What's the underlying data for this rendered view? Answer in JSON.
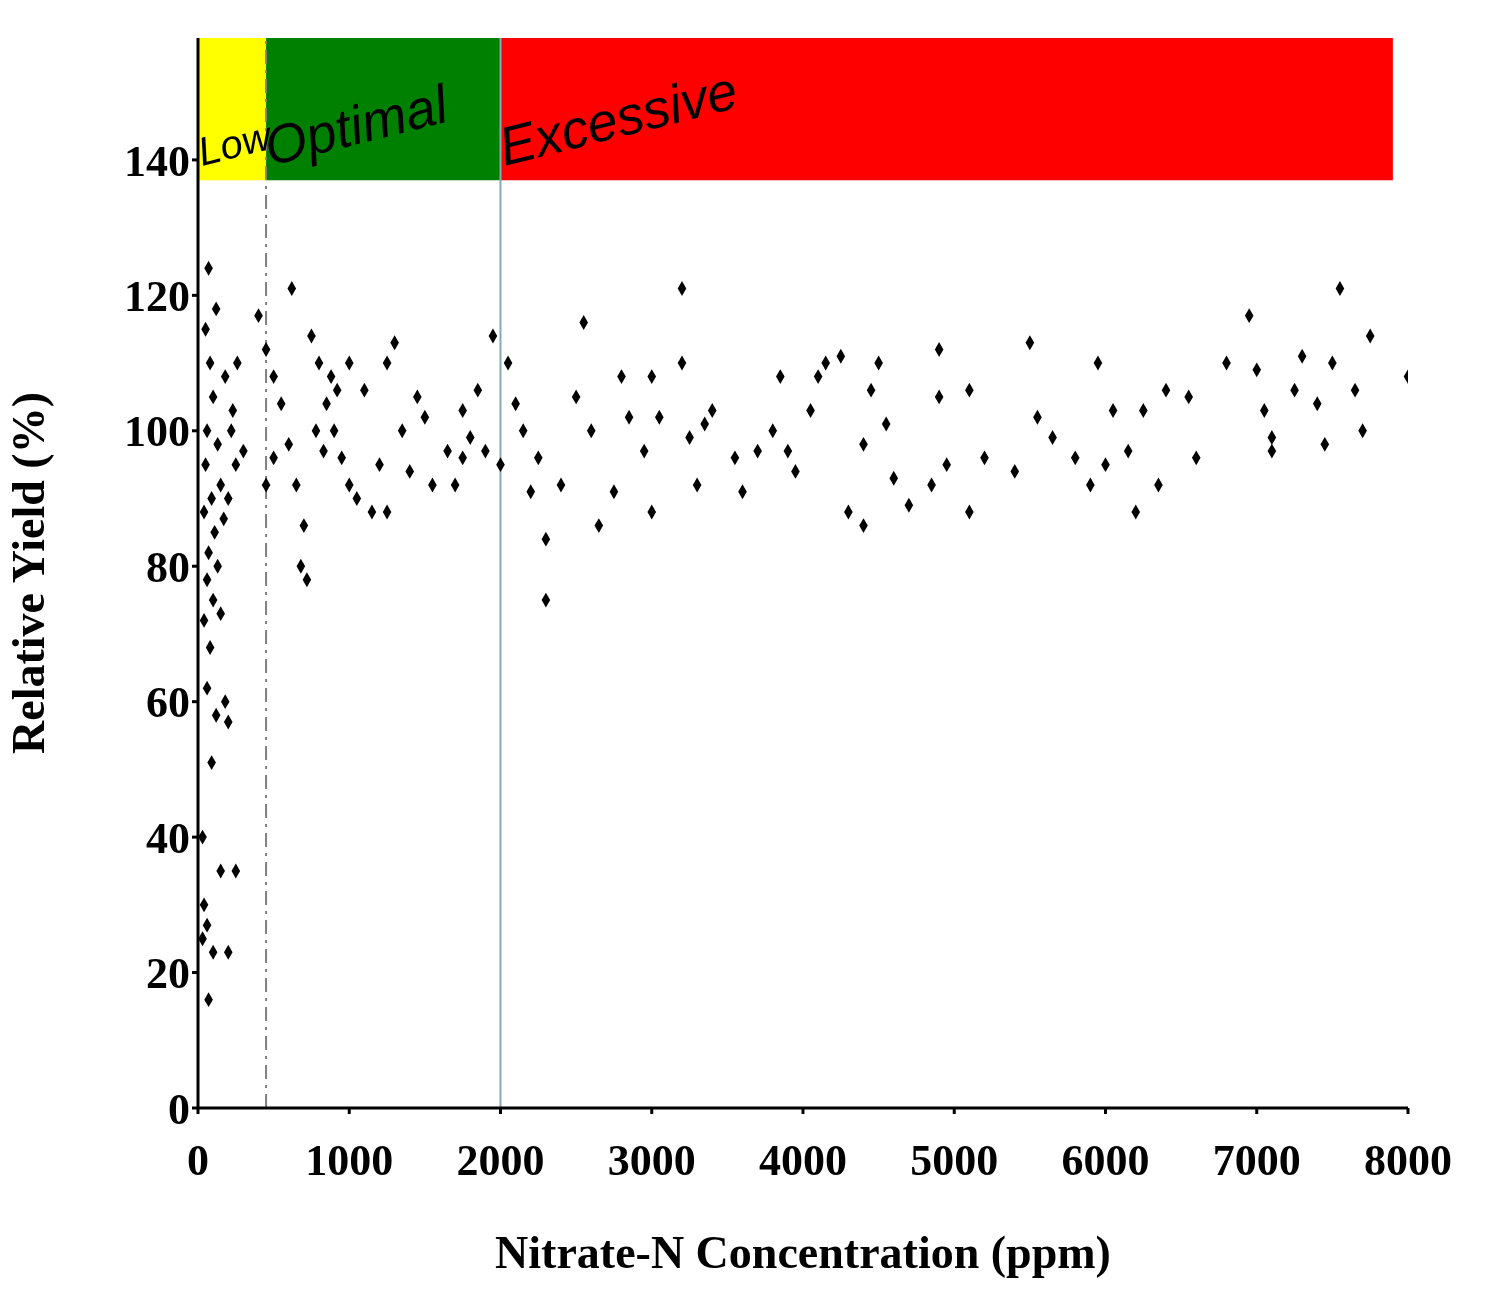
{
  "chart_data": {
    "type": "scatter",
    "xlabel": "Nitrate-N Concentration (ppm)",
    "ylabel": "Relative Yield (%)",
    "xlim": [
      0,
      8000
    ],
    "xticks": [
      0,
      1000,
      2000,
      3000,
      4000,
      5000,
      6000,
      7000,
      8000
    ],
    "ylim": [
      0,
      158
    ],
    "yticks": [
      0,
      20,
      40,
      60,
      80,
      100,
      120,
      140
    ],
    "marker": "diamond",
    "bands": [
      {
        "axis": "x",
        "from": 0,
        "to": 450,
        "label": "Low",
        "color": "#ffff00"
      },
      {
        "axis": "x",
        "from": 450,
        "to": 2000,
        "label": "Optimal",
        "color": "#008000"
      },
      {
        "axis": "x",
        "from": 2000,
        "to": 7900,
        "label": "Excessive",
        "color": "#ff0000"
      }
    ],
    "ref_lines": [
      {
        "axis": "x",
        "value": 450,
        "color": "#808080",
        "line_style": "dashed"
      },
      {
        "axis": "x",
        "value": 2000,
        "color": "#8aa8b8",
        "line_style": "solid"
      }
    ],
    "series": [
      {
        "color": "#000000",
        "x": [
          70,
          50,
          120,
          80,
          100,
          60,
          130,
          50,
          150,
          90,
          40,
          110,
          170,
          70,
          130,
          60,
          100,
          40,
          150,
          80,
          60,
          180,
          120,
          200,
          90,
          30,
          150,
          250,
          40,
          60,
          100,
          200,
          30,
          70,
          180,
          220,
          250,
          200,
          230,
          300,
          260,
          400,
          450,
          500,
          550,
          600,
          650,
          700,
          680,
          720,
          620,
          750,
          800,
          850,
          900,
          950,
          1000,
          780,
          830,
          880,
          920,
          1000,
          1100,
          1150,
          1200,
          1250,
          1300,
          1350,
          1400,
          1450,
          1500,
          1550,
          1650,
          1700,
          1750,
          1800,
          1850,
          1900,
          1950,
          2000,
          1250,
          1050,
          1750,
          450,
          500,
          2050,
          2100,
          2150,
          2200,
          2250,
          2300,
          2300,
          2400,
          2500,
          2550,
          2600,
          2650,
          2750,
          2800,
          2850,
          2950,
          3000,
          3000,
          3050,
          3200,
          3200,
          3250,
          3300,
          3350,
          3400,
          3550,
          3600,
          3700,
          3800,
          3850,
          3900,
          3950,
          4050,
          4100,
          4150,
          4250,
          4300,
          4400,
          4400,
          4450,
          4500,
          4550,
          4600,
          4700,
          4850,
          4900,
          4900,
          4950,
          5100,
          5100,
          5200,
          5400,
          5500,
          5550,
          5650,
          5800,
          5900,
          5950,
          6000,
          6050,
          6150,
          6200,
          6250,
          6350,
          6400,
          6550,
          6600,
          6800,
          6950,
          7000,
          7050,
          7100,
          7100,
          7250,
          7300,
          7400,
          7450,
          7500,
          7550,
          7650,
          7700,
          7750,
          8000
        ],
        "values": [
          124,
          115,
          118,
          110,
          105,
          100,
          98,
          95,
          92,
          90,
          88,
          85,
          87,
          82,
          80,
          78,
          75,
          72,
          73,
          68,
          62,
          60,
          58,
          57,
          51,
          40,
          35,
          35,
          30,
          27,
          23,
          23,
          25,
          16,
          108,
          100,
          95,
          90,
          103,
          97,
          110,
          117,
          112,
          108,
          104,
          98,
          92,
          86,
          80,
          78,
          121,
          114,
          110,
          104,
          100,
          96,
          92,
          100,
          97,
          108,
          106,
          110,
          106,
          88,
          95,
          110,
          113,
          100,
          94,
          105,
          102,
          92,
          97,
          92,
          103,
          99,
          106,
          97,
          114,
          95,
          88,
          90,
          96,
          92,
          96,
          110,
          104,
          100,
          91,
          96,
          84,
          75,
          92,
          105,
          116,
          100,
          86,
          91,
          108,
          102,
          97,
          108,
          88,
          102,
          121,
          110,
          99,
          92,
          101,
          103,
          96,
          91,
          97,
          100,
          108,
          97,
          94,
          103,
          108,
          110,
          111,
          88,
          86,
          98,
          106,
          110,
          101,
          93,
          89,
          92,
          112,
          105,
          95,
          88,
          106,
          96,
          94,
          113,
          102,
          99,
          96,
          92,
          110,
          95,
          103,
          97,
          88,
          103,
          92,
          106,
          105,
          96,
          110,
          117,
          109,
          103,
          97,
          99,
          106,
          111,
          104,
          98,
          110,
          121,
          106,
          100,
          114,
          108
        ]
      }
    ]
  }
}
